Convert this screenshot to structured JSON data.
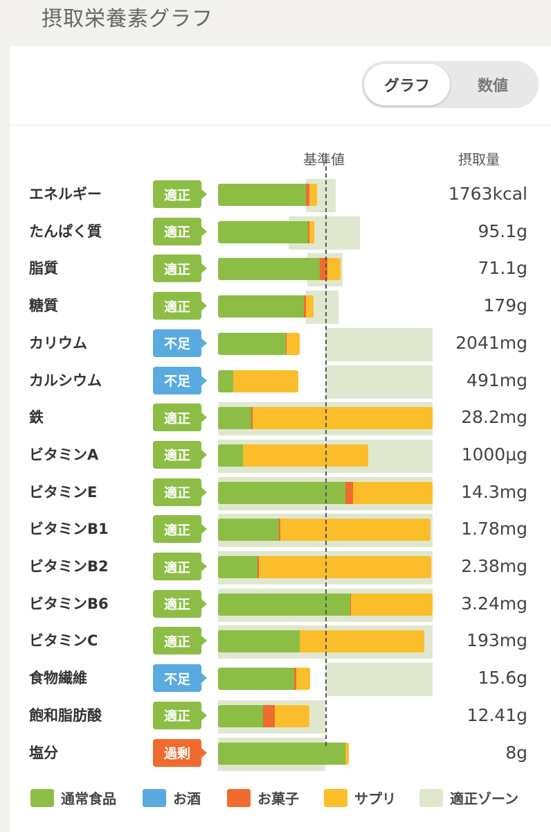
{
  "page": {
    "title": "摂取栄養素グラフ"
  },
  "toggle": {
    "graph_label": "グラフ",
    "numbers_label": "数値"
  },
  "columns": {
    "reference": "基準値",
    "intake": "摂取量"
  },
  "colors": {
    "normal_food": "#8cbd45",
    "alcohol": "#58a9e0",
    "snacks": "#ef6b2e",
    "supplement": "#fbbd2a",
    "proper_zone": "#dfe8cf",
    "badge_ok": "#8cbd45",
    "badge_low": "#5aaae2",
    "badge_over": "#ef6b2e"
  },
  "rows": [
    {
      "name": "エネルギー",
      "status": "適正",
      "status_type": "ok",
      "value": "1763kcal"
    },
    {
      "name": "たんぱく質",
      "status": "適正",
      "status_type": "ok",
      "value": "95.1g"
    },
    {
      "name": "脂質",
      "status": "適正",
      "status_type": "ok",
      "value": "71.1g"
    },
    {
      "name": "糖質",
      "status": "適正",
      "status_type": "ok",
      "value": "179g"
    },
    {
      "name": "カリウム",
      "status": "不足",
      "status_type": "low",
      "value": "2041mg"
    },
    {
      "name": "カルシウム",
      "status": "不足",
      "status_type": "low",
      "value": "491mg"
    },
    {
      "name": "鉄",
      "status": "適正",
      "status_type": "ok",
      "value": "28.2mg"
    },
    {
      "name": "ビタミンA",
      "status": "適正",
      "status_type": "ok",
      "value": "1000µg"
    },
    {
      "name": "ビタミンE",
      "status": "適正",
      "status_type": "ok",
      "value": "14.3mg"
    },
    {
      "name": "ビタミンB1",
      "status": "適正",
      "status_type": "ok",
      "value": "1.78mg"
    },
    {
      "name": "ビタミンB2",
      "status": "適正",
      "status_type": "ok",
      "value": "2.38mg"
    },
    {
      "name": "ビタミンB6",
      "status": "適正",
      "status_type": "ok",
      "value": "3.24mg"
    },
    {
      "name": "ビタミンC",
      "status": "適正",
      "status_type": "ok",
      "value": "193mg"
    },
    {
      "name": "食物繊維",
      "status": "不足",
      "status_type": "low",
      "value": "15.6g"
    },
    {
      "name": "飽和脂肪酸",
      "status": "適正",
      "status_type": "ok",
      "value": "12.41g"
    },
    {
      "name": "塩分",
      "status": "過剰",
      "status_type": "over",
      "value": "8g"
    }
  ],
  "chart_data": {
    "type": "bar",
    "scale_note": "relative to reference (1.0 = 基準値)",
    "series_order": [
      "通常食品",
      "お酒",
      "お菓子",
      "サプリ"
    ],
    "categories": [
      "エネルギー",
      "たんぱく質",
      "脂質",
      "糖質",
      "カリウム",
      "カルシウム",
      "鉄",
      "ビタミンA",
      "ビタミンE",
      "ビタミンB1",
      "ビタミンB2",
      "ビタミンB6",
      "ビタミンC",
      "食物繊維",
      "飽和脂肪酸",
      "塩分"
    ],
    "series": [
      {
        "name": "通常食品",
        "values": [
          0.82,
          0.84,
          0.95,
          0.8,
          0.63,
          0.14,
          0.31,
          0.23,
          1.19,
          0.57,
          0.37,
          1.23,
          0.76,
          0.71,
          0.42,
          1.19
        ]
      },
      {
        "name": "お酒",
        "values": [
          0,
          0,
          0,
          0,
          0,
          0,
          0,
          0,
          0,
          0,
          0,
          0,
          0,
          0,
          0,
          0
        ]
      },
      {
        "name": "お菓子",
        "values": [
          0.03,
          0.01,
          0.07,
          0.02,
          0.01,
          0,
          0.01,
          0,
          0.07,
          0.01,
          0.01,
          0.01,
          0,
          0.02,
          0.11,
          0
        ]
      },
      {
        "name": "サプリ",
        "values": [
          0.07,
          0.05,
          0.12,
          0.07,
          0.12,
          0.61,
          1.68,
          1.17,
          0.74,
          1.4,
          1.61,
          0.76,
          1.16,
          0.13,
          0.32,
          0.03
        ]
      }
    ],
    "proper_zone": [
      [
        0.82,
        1.1
      ],
      [
        0.66,
        1.32
      ],
      [
        0.83,
        1.16
      ],
      [
        0.82,
        1.12
      ],
      [
        1.0,
        2.0
      ],
      [
        1.0,
        2.0
      ],
      [
        0,
        2.0
      ],
      [
        0,
        2.0
      ],
      [
        0,
        2.0
      ],
      [
        0,
        2.0
      ],
      [
        0,
        2.0
      ],
      [
        0,
        2.0
      ],
      [
        0,
        2.0
      ],
      [
        1.0,
        2.0
      ],
      [
        0,
        1.0
      ],
      [
        0,
        1.0
      ]
    ],
    "reference": 1.0,
    "xlim": [
      0,
      2.0
    ],
    "legend": [
      "通常食品",
      "お酒",
      "お菓子",
      "サプリ",
      "適正ゾーン"
    ],
    "legend_position": "bottom"
  }
}
